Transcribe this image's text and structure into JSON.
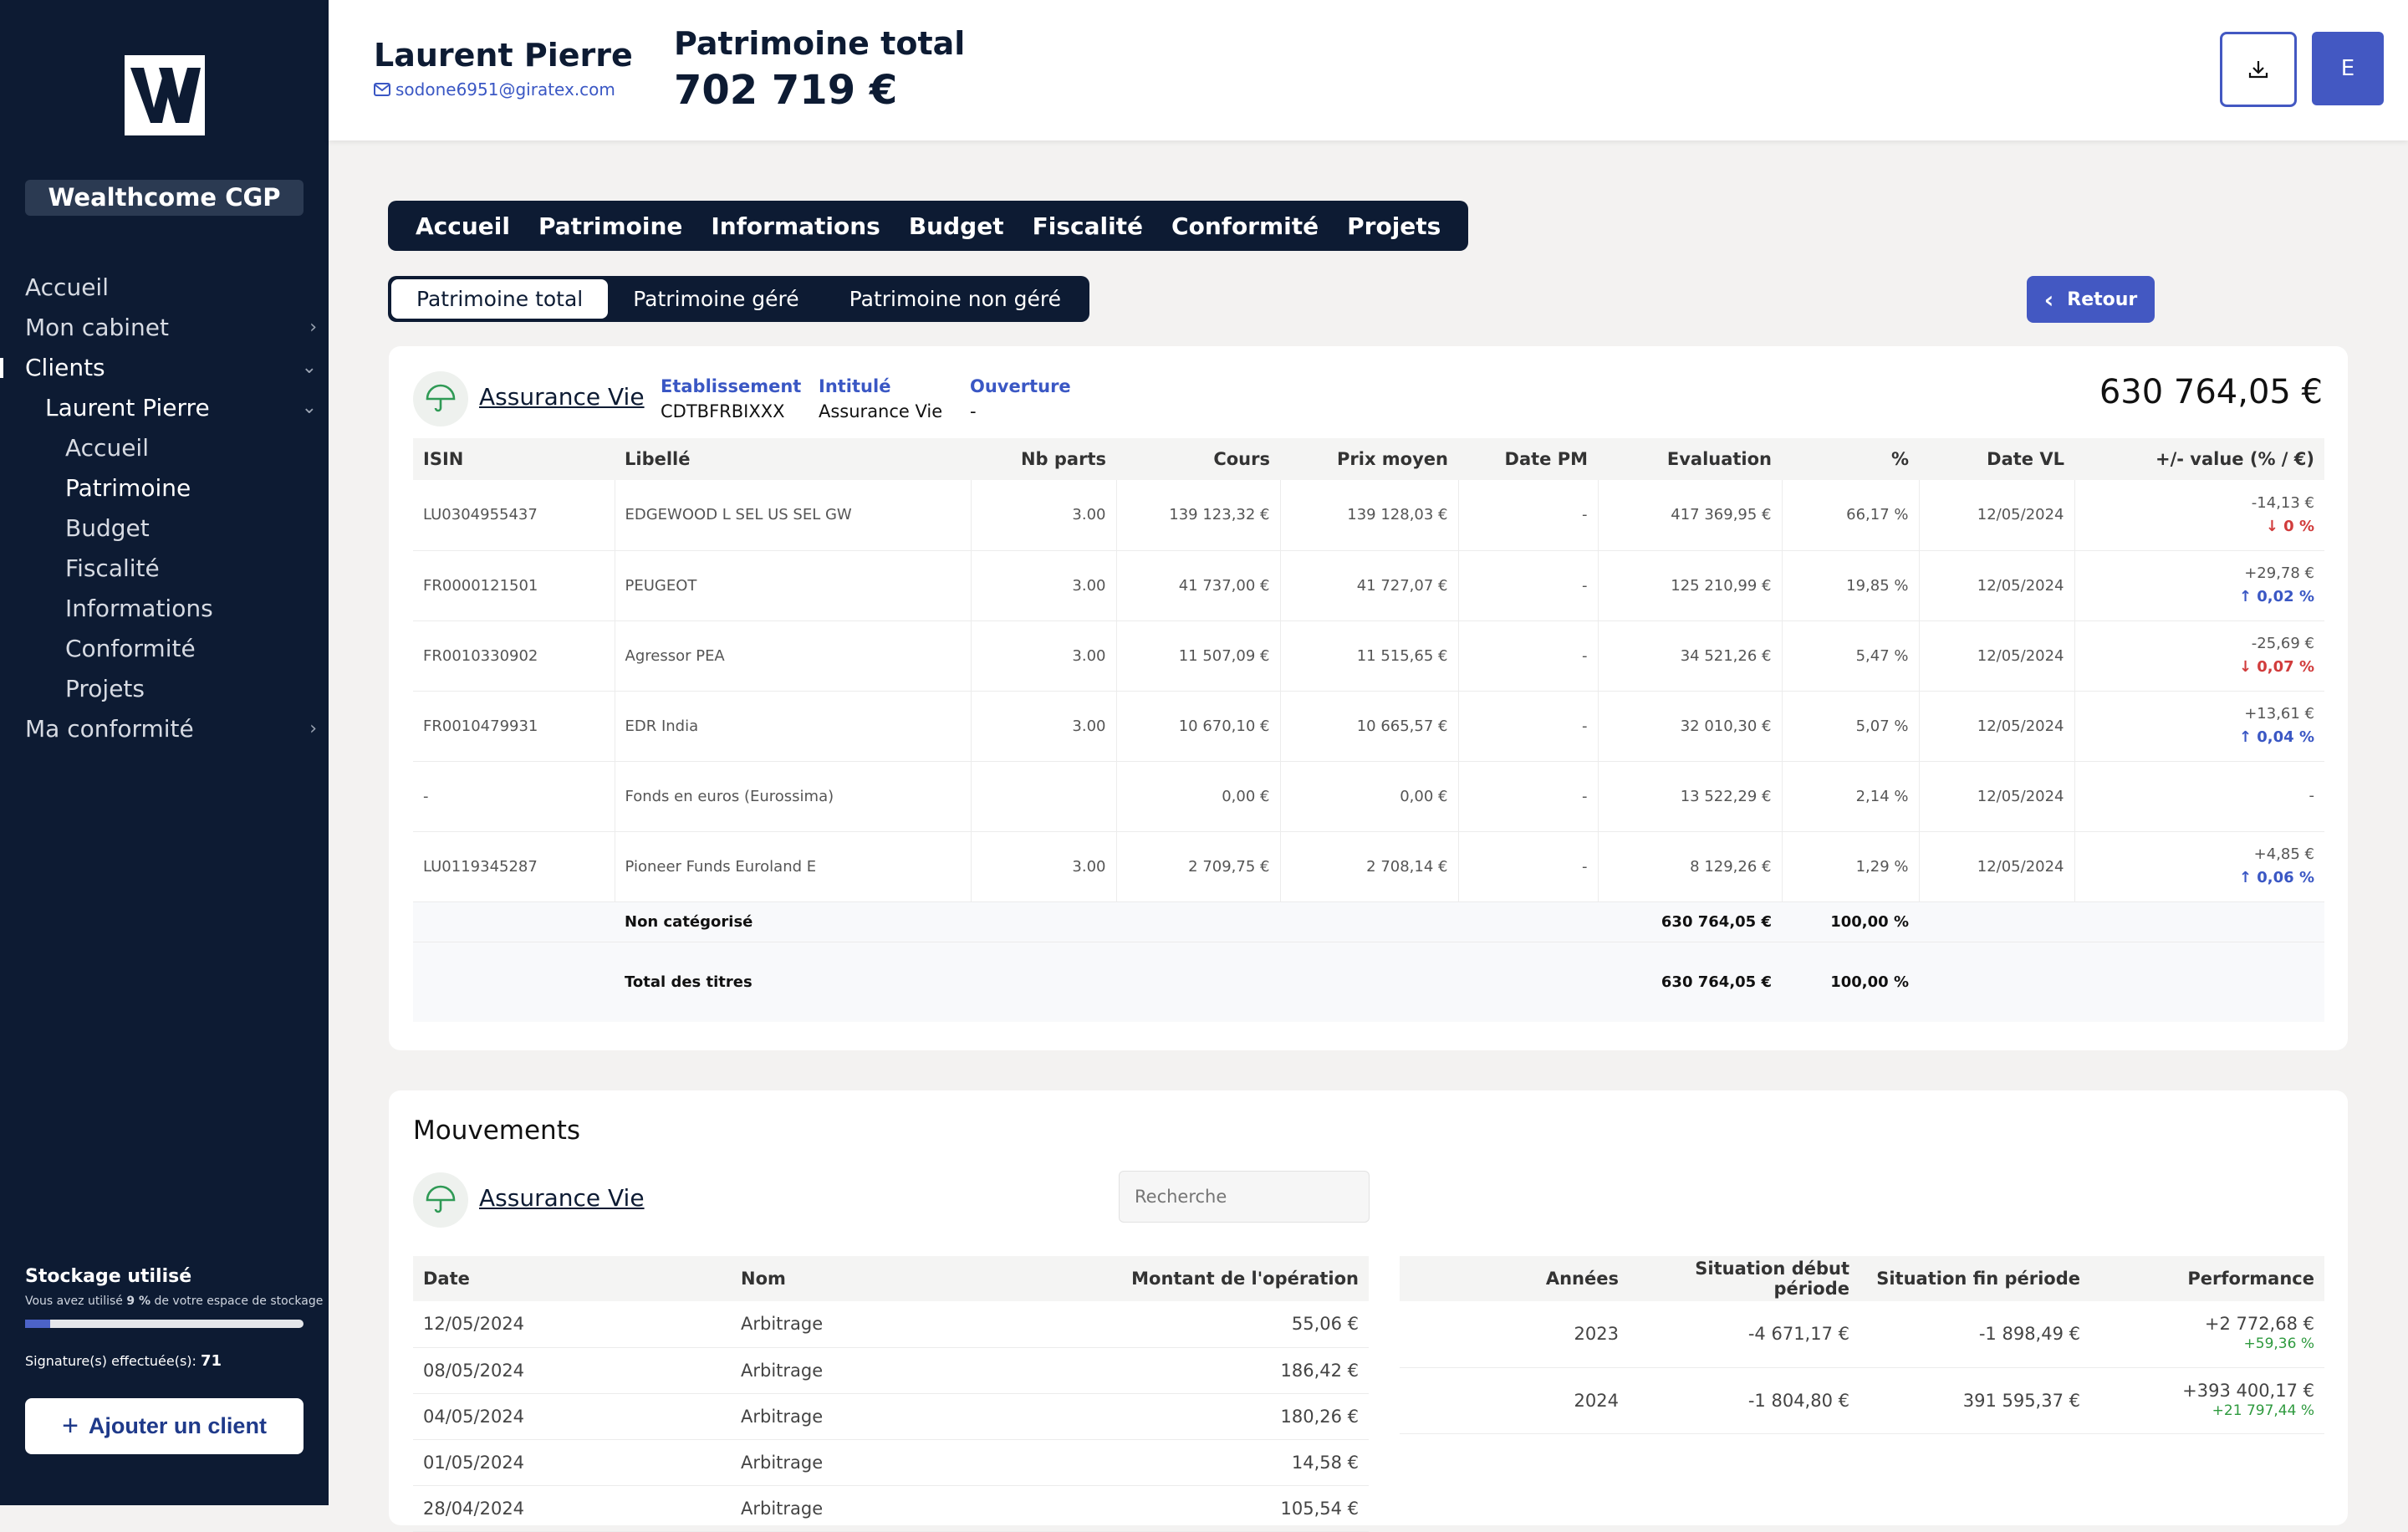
{
  "sidebar": {
    "brand": "Wealthcome CGP",
    "nav": [
      {
        "label": "Accueil",
        "level": 0,
        "chev": ""
      },
      {
        "label": "Mon cabinet",
        "level": 0,
        "chev": "›"
      },
      {
        "label": "Clients",
        "level": 0,
        "chev": "⌄",
        "active": true
      },
      {
        "label": "Laurent Pierre",
        "level": 1,
        "chev": "⌄"
      },
      {
        "label": "Accueil",
        "level": 2,
        "chev": ""
      },
      {
        "label": "Patrimoine",
        "level": 2,
        "chev": "",
        "active": true
      },
      {
        "label": "Budget",
        "level": 2,
        "chev": ""
      },
      {
        "label": "Fiscalité",
        "level": 2,
        "chev": ""
      },
      {
        "label": "Informations",
        "level": 2,
        "chev": ""
      },
      {
        "label": "Conformité",
        "level": 2,
        "chev": ""
      },
      {
        "label": "Projets",
        "level": 2,
        "chev": ""
      },
      {
        "label": "Ma conformité",
        "level": 0,
        "chev": "›"
      }
    ],
    "storage_title": "Stockage utilisé",
    "storage_prefix": "Vous avez utilisé",
    "storage_percent": "9 %",
    "storage_suffix": "de votre espace de stockage",
    "storage_fraction": 0.09,
    "signatures_label": "Signature(s) effectuée(s):",
    "signatures_count": "71",
    "add_client": "Ajouter un client"
  },
  "header": {
    "client_name": "Laurent Pierre",
    "client_email": "sodone6951@giratex.com",
    "total_label": "Patrimoine total",
    "total_value": "702 719 €",
    "avatar_letter": "E"
  },
  "tabs": [
    "Accueil",
    "Patrimoine",
    "Informations",
    "Budget",
    "Fiscalité",
    "Conformité",
    "Projets"
  ],
  "subtabs": [
    {
      "label": "Patrimoine total",
      "active": true
    },
    {
      "label": "Patrimoine géré",
      "active": false
    },
    {
      "label": "Patrimoine non géré",
      "active": false
    }
  ],
  "retour_label": "Retour",
  "contract": {
    "name": "Assurance Vie",
    "meta": [
      {
        "key": "Etablissement",
        "value": "CDTBFRBIXXX"
      },
      {
        "key": "Intitulé",
        "value": "Assurance Vie"
      },
      {
        "key": "Ouverture",
        "value": "-"
      }
    ],
    "total": "630 764,05 €"
  },
  "holdings": {
    "columns": [
      "ISIN",
      "Libellé",
      "Nb parts",
      "Cours",
      "Prix moyen",
      "Date PM",
      "Evaluation",
      "%",
      "Date VL",
      "+/- value (% / €)"
    ],
    "rows": [
      {
        "isin": "LU0304955437",
        "libelle": "EDGEWOOD L SEL US SEL GW",
        "parts": "3.00",
        "cours": "139 123,32 €",
        "prix": "139 128,03 €",
        "datepm": "-",
        "eval": "417 369,95 €",
        "pct": "66,17 %",
        "datevl": "12/05/2024",
        "pv_amt": "-14,13 €",
        "pv_pct": "↓ 0 %",
        "dir": "down"
      },
      {
        "isin": "FR0000121501",
        "libelle": "PEUGEOT",
        "parts": "3.00",
        "cours": "41 737,00 €",
        "prix": "41 727,07 €",
        "datepm": "-",
        "eval": "125 210,99 €",
        "pct": "19,85 %",
        "datevl": "12/05/2024",
        "pv_amt": "+29,78 €",
        "pv_pct": "↑ 0,02 %",
        "dir": "up"
      },
      {
        "isin": "FR0010330902",
        "libelle": "Agressor PEA",
        "parts": "3.00",
        "cours": "11 507,09 €",
        "prix": "11 515,65 €",
        "datepm": "-",
        "eval": "34 521,26 €",
        "pct": "5,47 %",
        "datevl": "12/05/2024",
        "pv_amt": "-25,69 €",
        "pv_pct": "↓ 0,07 %",
        "dir": "down"
      },
      {
        "isin": "FR0010479931",
        "libelle": "EDR India",
        "parts": "3.00",
        "cours": "10 670,10 €",
        "prix": "10 665,57 €",
        "datepm": "-",
        "eval": "32 010,30 €",
        "pct": "5,07 %",
        "datevl": "12/05/2024",
        "pv_amt": "+13,61 €",
        "pv_pct": "↑ 0,04 %",
        "dir": "up"
      },
      {
        "isin": "-",
        "libelle": "Fonds en euros (Eurossima)",
        "parts": "",
        "cours": "0,00 €",
        "prix": "0,00 €",
        "datepm": "-",
        "eval": "13 522,29 €",
        "pct": "2,14 %",
        "datevl": "12/05/2024",
        "pv_amt": "-",
        "pv_pct": "",
        "dir": "none"
      },
      {
        "isin": "LU0119345287",
        "libelle": "Pioneer Funds Euroland E",
        "parts": "3.00",
        "cours": "2 709,75 €",
        "prix": "2 708,14 €",
        "datepm": "-",
        "eval": "8 129,26 €",
        "pct": "1,29 %",
        "datevl": "12/05/2024",
        "pv_amt": "+4,85 €",
        "pv_pct": "↑ 0,06 %",
        "dir": "up"
      }
    ],
    "subtotal": {
      "label": "Non catégorisé",
      "eval": "630 764,05 €",
      "pct": "100,00 %"
    },
    "total": {
      "label": "Total des titres",
      "eval": "630 764,05 €",
      "pct": "100,00 %"
    }
  },
  "mouvements": {
    "title": "Mouvements",
    "contract": "Assurance Vie",
    "search_placeholder": "Recherche",
    "columns": [
      "Date",
      "Nom",
      "Montant de l'opération"
    ],
    "rows": [
      {
        "date": "12/05/2024",
        "nom": "Arbitrage",
        "montant": "55,06 €"
      },
      {
        "date": "08/05/2024",
        "nom": "Arbitrage",
        "montant": "186,42 €"
      },
      {
        "date": "04/05/2024",
        "nom": "Arbitrage",
        "montant": "180,26 €"
      },
      {
        "date": "01/05/2024",
        "nom": "Arbitrage",
        "montant": "14,58 €"
      },
      {
        "date": "28/04/2024",
        "nom": "Arbitrage",
        "montant": "105,54 €"
      }
    ],
    "perf_columns": [
      "Années",
      "Situation début période",
      "Situation fin période",
      "Performance"
    ],
    "perf_rows": [
      {
        "annee": "2023",
        "debut": "-4 671,17 €",
        "fin": "-1 898,49 €",
        "perf": "+2 772,68 €",
        "perf_pct": "+59,36 %"
      },
      {
        "annee": "2024",
        "debut": "-1 804,80 €",
        "fin": "391 595,37 €",
        "perf": "+393 400,17 €",
        "perf_pct": "+21 797,44 %"
      }
    ]
  }
}
